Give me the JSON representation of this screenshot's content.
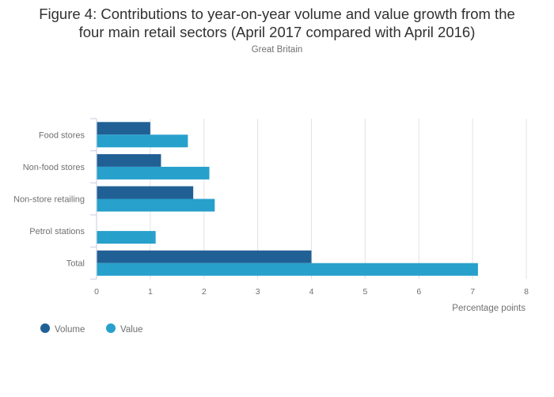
{
  "chart_data": {
    "type": "bar",
    "orientation": "horizontal",
    "title": "Figure 4: Contributions to year-on-year volume and value growth from the four main retail sectors (April 2017 compared with April 2016)",
    "title_line1": "Figure 4: Contributions to year-on-year volume and value growth from the",
    "title_line2": "four main retail sectors (April 2017 compared with April 2016)",
    "subtitle": "Great Britain",
    "categories": [
      "Food stores",
      "Non-food stores",
      "Non-store retailing",
      "Petrol stations",
      "Total"
    ],
    "series": [
      {
        "name": "Volume",
        "color": "#206095",
        "values": [
          1.0,
          1.2,
          1.8,
          0.0,
          4.0
        ]
      },
      {
        "name": "Value",
        "color": "#27a0cc",
        "values": [
          1.7,
          2.1,
          2.2,
          1.1,
          7.1
        ]
      }
    ],
    "xlabel": "Percentage points",
    "ylabel": "",
    "xlim": [
      0,
      8
    ],
    "xticks": [
      0,
      1,
      2,
      3,
      4,
      5,
      6,
      7,
      8
    ],
    "grid": true,
    "legend": {
      "position": "bottom-left",
      "entries": [
        "Volume",
        "Value"
      ]
    }
  }
}
